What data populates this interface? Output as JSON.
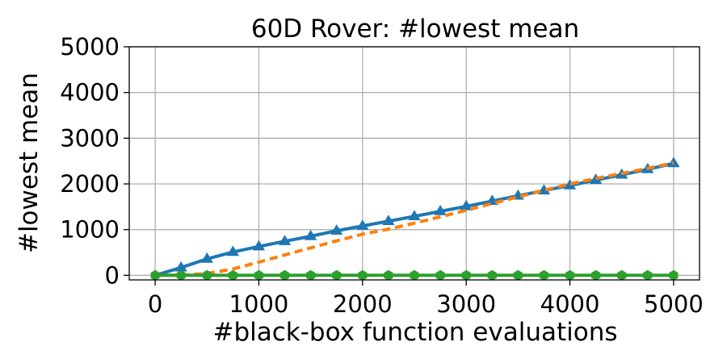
{
  "chart_data": {
    "type": "line",
    "title": "60D Rover: #lowest mean",
    "xlabel": "#black-box function evaluations",
    "ylabel": "#lowest mean",
    "xlim": [
      -250,
      5250
    ],
    "ylim": [
      -100,
      5000
    ],
    "xticks": [
      0,
      1000,
      2000,
      3000,
      4000,
      5000
    ],
    "xtick_labels": [
      "0",
      "1000",
      "2000",
      "3000",
      "4000",
      "5000"
    ],
    "yticks": [
      0,
      1000,
      2000,
      3000,
      4000,
      5000
    ],
    "ytick_labels": [
      "0",
      "1000",
      "2000",
      "3000",
      "4000",
      "5000"
    ],
    "grid": true,
    "legend": "none",
    "series": [
      {
        "color": "#1f77b4",
        "line_style": "solid",
        "marker": "triangle",
        "x": [
          0,
          250,
          500,
          750,
          1000,
          1250,
          1500,
          1750,
          2000,
          2250,
          2500,
          2750,
          3000,
          3250,
          3500,
          3750,
          4000,
          4250,
          4500,
          4750,
          5000
        ],
        "y": [
          0,
          170,
          360,
          510,
          630,
          745,
          855,
          975,
          1080,
          1185,
          1290,
          1400,
          1510,
          1625,
          1740,
          1855,
          1965,
          2085,
          2200,
          2320,
          2450
        ]
      },
      {
        "color": "#ff7f0e",
        "line_style": "dashed",
        "marker": "none",
        "x": [
          0,
          250,
          500,
          750,
          1000,
          1250,
          1500,
          1750,
          2000,
          2250,
          2500,
          2750,
          3000,
          3250,
          3500,
          3750,
          4000,
          4250,
          4500,
          4750,
          5000
        ],
        "y": [
          0,
          5,
          40,
          140,
          290,
          445,
          600,
          755,
          900,
          1010,
          1140,
          1280,
          1425,
          1570,
          1715,
          1860,
          2000,
          2120,
          2230,
          2340,
          2460
        ]
      },
      {
        "color": "#2ca02c",
        "line_style": "solid",
        "marker": "hexagon",
        "x": [
          0,
          250,
          500,
          750,
          1000,
          1250,
          1500,
          1750,
          2000,
          2250,
          2500,
          2750,
          3000,
          3250,
          3500,
          3750,
          4000,
          4250,
          4500,
          4750,
          5000
        ],
        "y": [
          0,
          0,
          0,
          0,
          0,
          0,
          0,
          0,
          0,
          0,
          0,
          0,
          0,
          0,
          0,
          0,
          0,
          0,
          0,
          0,
          0
        ]
      }
    ]
  }
}
